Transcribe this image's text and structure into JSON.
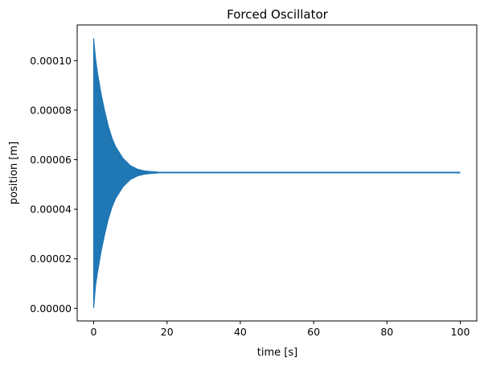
{
  "chart_data": {
    "type": "line",
    "title": "Forced Oscillator",
    "xlabel": "time [s]",
    "ylabel": "position [m]",
    "xlim": [
      -4.5,
      104.5
    ],
    "ylim": [
      -5.1e-06,
      0.0001144
    ],
    "xticks": [
      0,
      20,
      40,
      60,
      80,
      100
    ],
    "xtick_labels": [
      "0",
      "20",
      "40",
      "60",
      "80",
      "100"
    ],
    "yticks": [
      0.0,
      2e-05,
      4e-05,
      6e-05,
      8e-05,
      0.0001
    ],
    "ytick_labels": [
      "0.00000",
      "0.00002",
      "0.00004",
      "0.00006",
      "0.00008",
      "0.00010"
    ],
    "grid": false,
    "legend": "none",
    "series": [
      {
        "color": "#1f77b4",
        "equilibrium": 5.48e-05,
        "envelope": {
          "t": [
            0,
            0.5,
            1,
            2,
            3,
            4,
            5,
            6,
            8,
            10,
            12,
            14,
            16,
            18,
            100
          ],
          "upper": [
            0.000109,
            0.000101,
            9.55e-05,
            8.68e-05,
            7.97e-05,
            7.35e-05,
            6.87e-05,
            6.52e-05,
            6.05e-05,
            5.76e-05,
            5.61e-05,
            5.54e-05,
            5.51e-05,
            5.49e-05,
            5.49e-05
          ],
          "lower": [
            0.0,
            9e-06,
            1.4e-05,
            2.28e-05,
            2.99e-05,
            3.61e-05,
            4.09e-05,
            4.44e-05,
            4.91e-05,
            5.2e-05,
            5.35e-05,
            5.42e-05,
            5.45e-05,
            5.47e-05,
            5.47e-05
          ]
        }
      }
    ]
  }
}
